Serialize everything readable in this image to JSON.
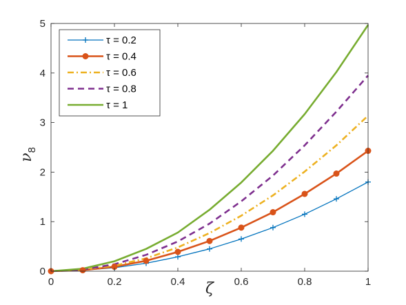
{
  "chart_data": {
    "type": "line",
    "x": [
      0,
      0.1,
      0.2,
      0.3,
      0.4,
      0.5,
      0.6,
      0.7,
      0.8,
      0.9,
      1
    ],
    "xlabel": "ζ",
    "ylabel_main": "ν",
    "ylabel_sub": "8",
    "xlim": [
      0,
      1
    ],
    "ylim": [
      0,
      5
    ],
    "xticks": [
      0,
      0.2,
      0.4,
      0.6,
      0.8,
      1
    ],
    "yticks": [
      0,
      1,
      2,
      3,
      4,
      5
    ],
    "grid": false,
    "legend_position": "top-left",
    "series": [
      {
        "name": "τ = 0.2",
        "color": "#0072BD",
        "style": "solid",
        "marker": "plus",
        "values": [
          0,
          0.02,
          0.07,
          0.16,
          0.29,
          0.45,
          0.65,
          0.88,
          1.15,
          1.46,
          1.8
        ]
      },
      {
        "name": "τ = 0.4",
        "color": "#D95319",
        "style": "solid",
        "marker": "circle",
        "values": [
          0,
          0.02,
          0.09,
          0.21,
          0.39,
          0.61,
          0.88,
          1.19,
          1.56,
          1.97,
          2.43
        ]
      },
      {
        "name": "τ = 0.6",
        "color": "#EDB120",
        "style": "dashdot",
        "marker": "none",
        "values": [
          0,
          0.03,
          0.11,
          0.26,
          0.48,
          0.77,
          1.12,
          1.53,
          2.01,
          2.54,
          3.14
        ]
      },
      {
        "name": "τ = 0.8",
        "color": "#7E2F8E",
        "style": "dashed",
        "marker": "none",
        "values": [
          0,
          0.03,
          0.14,
          0.33,
          0.6,
          0.96,
          1.41,
          1.93,
          2.54,
          3.22,
          3.95
        ]
      },
      {
        "name": "τ = 1",
        "color": "#77AC30",
        "style": "solid",
        "marker": "none",
        "values": [
          0,
          0.05,
          0.2,
          0.45,
          0.78,
          1.24,
          1.79,
          2.43,
          3.17,
          4.02,
          4.97
        ]
      }
    ]
  }
}
